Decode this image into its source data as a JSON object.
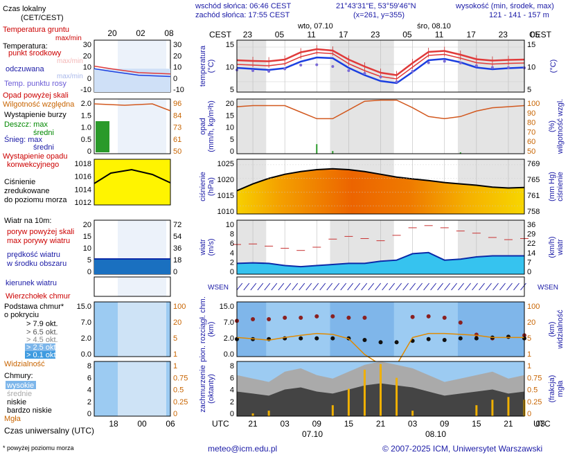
{
  "header": {
    "sunrise": "wschód słońca: 06:46 CEST",
    "sunset": "zachód słońca: 17:55 CEST",
    "coords": "21°43'31\"E, 53°59'46\"N",
    "grid": "(x=261,  y=355)",
    "height_label": "wysokość (min, środek, max)",
    "height_values": "121 - 141 - 157 m",
    "local_time": "Czas lokalny",
    "local_time_sub": "(CET/CEST)",
    "cest": "CEST",
    "day1": "wto, 07.10",
    "day2": "śro, 08.10",
    "left_hours_top": [
      "20",
      "02",
      "08"
    ],
    "main_hours_top": [
      "23",
      "05",
      "11",
      "17",
      "23",
      "05",
      "11",
      "17",
      "23",
      "05"
    ]
  },
  "footer": {
    "utc": "UTC",
    "main_hours_bottom": [
      "21",
      "03",
      "09",
      "15",
      "21",
      "03",
      "09",
      "15",
      "21",
      "03"
    ],
    "date1": "07.10",
    "date2": "08.10",
    "left_hours_bottom": [
      "18",
      "00",
      "06"
    ],
    "universal_time": "Czas uniwersalny (UTC)",
    "footnote": "* powyżej poziomu morza",
    "email": "meteo@icm.edu.pl",
    "copyright": "© 2007-2025 ICM, Uniwersytet Warszawski"
  },
  "legend": {
    "temp": {
      "ground": "Temperatura gruntu",
      "maxmin": "max/min",
      "temperature": "Temperatura:",
      "midpoint": "punkt środkowy",
      "maxmin2": "max/min",
      "felt": "odczuwana",
      "maxmin3": "max/min",
      "dew": "Temp. punktu rosy"
    },
    "rain": {
      "over_scale": "Opad powyżej skali",
      "humidity": "Wilgotność względna",
      "storm": "Wystąpienie burzy",
      "rain": "Deszcz: max",
      "rain_mean": "średni",
      "snow": "Śnieg: max",
      "snow_mean": "średni",
      "conv1": "Wystąpienie opadu",
      "conv2": "konwekcyjnego"
    },
    "pressure": {
      "line1": "Ciśnienie",
      "line2": "zredukowane",
      "line3": "do poziomu morza"
    },
    "wind": {
      "title": "Wiatr na 10m:",
      "gust_over": "poryw powyżej skali",
      "max_gust": "max porywy wiatru",
      "speed": "prędkość wiatru",
      "speed2": "w środku obszaru"
    },
    "direction": {
      "title": "kierunek wiatru"
    },
    "cloudbase": {
      "top": "Wierzchołek chmur",
      "base1": "Podstawa chmur*",
      "base2": "o pokryciu",
      "o79": "> 7.9 okt.",
      "o65": "> 6.5 okt.",
      "o45": "> 4.5 okt.",
      "o25": "> 2.5 okt.",
      "o01": "> 0.1 okt.",
      "visibility": "Widzialność"
    },
    "clouds": {
      "title": "Chmury:",
      "high": "wysokie",
      "mid": "średnie",
      "low": "niskie",
      "vlow": "bardzo niskie",
      "fog": "Mgła"
    }
  },
  "axes": {
    "temp": {
      "label": "temperatura",
      "unit": "(°C)",
      "ticks": [
        "15",
        "10",
        "5"
      ],
      "left_ticks": [
        "30",
        "20",
        "10",
        "0",
        "-10"
      ]
    },
    "rain": {
      "label": "opad",
      "unit": "(mm/h, kg/m²h)",
      "ticks": [
        "20",
        "15",
        "10",
        "5",
        "0"
      ],
      "right_label": "wilgotność wzgl.",
      "right_unit": "(%)",
      "right_ticks": [
        "100",
        "90",
        "80",
        "70",
        "60",
        "50"
      ],
      "left_ticks": [
        "2.0",
        "1.5",
        "1.0",
        "0.5",
        "0"
      ],
      "left_right_ticks": [
        "96",
        "84",
        "73",
        "61",
        "50"
      ]
    },
    "pressure": {
      "label": "ciśnienie",
      "unit": "(hPa)",
      "ticks": [
        "1025",
        "1020",
        "1015",
        "1010"
      ],
      "right_label": "ciśnienie",
      "right_unit": "(mm Hg)",
      "right_ticks": [
        "769",
        "765",
        "761",
        "758"
      ],
      "left_ticks": [
        "1018",
        "1016",
        "1014",
        "1012"
      ]
    },
    "wind": {
      "label": "wiatr",
      "unit": "(m/s)",
      "ticks": [
        "10",
        "8",
        "6",
        "4",
        "2",
        "0"
      ],
      "right_label": "wiatr",
      "right_unit": "(km/h)",
      "right_ticks": [
        "36",
        "29",
        "22",
        "14",
        "7",
        "0"
      ],
      "left_ticks": [
        "20",
        "15",
        "10",
        "5",
        "0"
      ],
      "left_right_ticks": [
        "72",
        "54",
        "36",
        "18",
        "0"
      ]
    },
    "direction": {
      "compass": "WSEN"
    },
    "cloudbase": {
      "label": "pion. rozciągł. chm.",
      "unit": "(km)",
      "ticks": [
        "15.0",
        "7.0",
        "2.0",
        "0.0"
      ],
      "right_label": "widzialność",
      "right_unit": "(km)",
      "right_ticks": [
        "100",
        "20",
        "5",
        "1"
      ],
      "left_ticks": [
        "15.0",
        "7.0",
        "2.0",
        "0.0"
      ],
      "left_right_ticks": [
        "100",
        "20",
        "5",
        "1"
      ]
    },
    "clouds": {
      "label": "zachmurzenie",
      "unit": "(oktanty)",
      "ticks": [
        "8",
        "6",
        "4",
        "2",
        "0"
      ],
      "right_label": "mgła",
      "right_unit": "(frakcja)",
      "right_ticks": [
        "1",
        "0.75",
        "0.5",
        "0.25",
        "0"
      ],
      "left_ticks": [
        "8",
        "6",
        "4",
        "2",
        "0"
      ],
      "left_right_ticks": [
        "1",
        "0.75",
        "0.5",
        "0.25",
        "0"
      ]
    }
  },
  "chart_data": {
    "type": "line",
    "x_hours_from_start": [
      0,
      3,
      6,
      9,
      12,
      15,
      18,
      21,
      24,
      27,
      30,
      33,
      36,
      39,
      42,
      45,
      48,
      51,
      54
    ],
    "temperature_mid": [
      10.0,
      9.8,
      9.6,
      10.2,
      12.2,
      13.4,
      13.1,
      10.2,
      8.2,
      6.5,
      5.8,
      9.2,
      12.6,
      12.9,
      11.8,
      10.5,
      10.1,
      10.3,
      10.4
    ],
    "temperature_max": [
      11.2,
      11.0,
      10.9,
      11.4,
      13.5,
      14.4,
      14.0,
      11.4,
      9.4,
      7.6,
      6.9,
      10.4,
      13.6,
      13.9,
      12.8,
      11.5,
      11.1,
      11.3,
      11.4
    ],
    "temperature_felt": [
      9.0,
      8.7,
      8.4,
      8.9,
      10.8,
      12.0,
      11.8,
      9.0,
      6.9,
      5.2,
      4.6,
      7.8,
      11.2,
      11.6,
      10.6,
      9.1,
      8.6,
      8.9,
      9.1
    ],
    "dew_point": [
      8.4,
      8.2,
      8.0,
      8.7,
      9.8,
      9.9,
      9.4,
      8.2,
      7.4,
      6.4,
      5.0,
      8.0,
      10.5,
      10.9,
      10.4,
      9.6,
      9.1,
      9.1,
      9.0
    ],
    "humidity_pct": [
      93,
      94,
      94,
      94,
      88,
      82,
      82,
      90,
      98,
      99,
      99,
      92,
      84,
      82,
      84,
      89,
      92,
      93,
      94
    ],
    "precip_mm_h": [
      0,
      0,
      0,
      0,
      0,
      3.5,
      1.0,
      0,
      0,
      0,
      0,
      0,
      0,
      0,
      0.5,
      0,
      0,
      0,
      0
    ],
    "pressure_hpa": [
      1015.5,
      1018.0,
      1020.0,
      1021.5,
      1022.5,
      1023.2,
      1023.5,
      1023.2,
      1022.5,
      1021.5,
      1020.5,
      1019.8,
      1019.2,
      1018.5,
      1018.0,
      1017.5,
      1016.8,
      1016.5,
      1016.7
    ],
    "wind_speed_ms": [
      2.0,
      2.1,
      2.0,
      1.6,
      1.4,
      1.6,
      1.8,
      2.0,
      2.0,
      2.4,
      2.6,
      3.8,
      4.0,
      2.6,
      2.8,
      3.2,
      3.4,
      3.4,
      3.4
    ],
    "wind_gust_ms": [
      5.5,
      5.6,
      5.2,
      4.8,
      4.4,
      5.0,
      6.5,
      7.0,
      6.6,
      6.2,
      7.2,
      8.6,
      9.0,
      8.6,
      8.0,
      7.6,
      6.8,
      6.4,
      6.6
    ],
    "cloud_base_km": [
      0.4,
      0.4,
      0.4,
      0.5,
      0.5,
      0.5,
      0.5,
      0.5,
      0.3,
      0.05,
      0.05,
      0.2,
      0.4,
      0.3,
      0.5,
      0.5,
      0.6,
      0.7,
      0.5
    ],
    "cloud_top_km": [
      5.5,
      6.0,
      6.0,
      6.5,
      6.5,
      7.0,
      7.0,
      6.5,
      6.5,
      0.1,
      0.1,
      6.8,
      7.0,
      6.5,
      5.0,
      2.5,
      2.0,
      2.2,
      2.4
    ],
    "visibility_km": [
      5.0,
      4.5,
      4.0,
      5.0,
      6.0,
      7.0,
      6.5,
      4.5,
      1.2,
      0.5,
      0.5,
      5.0,
      7.0,
      7.0,
      6.5,
      6.0,
      5.0,
      5.0,
      5.0
    ],
    "cloud_total_oct": [
      6.0,
      5.5,
      5.0,
      6.5,
      7.0,
      6.0,
      5.5,
      6.5,
      7.5,
      8.0,
      7.5,
      7.0,
      6.0,
      5.0,
      5.5,
      6.0,
      6.5,
      5.5,
      6.0
    ],
    "fog_fraction": [
      0.0,
      0.05,
      0.1,
      0.0,
      0.0,
      0.0,
      0.2,
      0.5,
      0.85,
      0.95,
      0.7,
      0.1,
      0.0,
      0.0,
      0.0,
      0.2,
      0.3,
      0.35,
      0.3
    ],
    "xlim": [
      0,
      54
    ]
  }
}
